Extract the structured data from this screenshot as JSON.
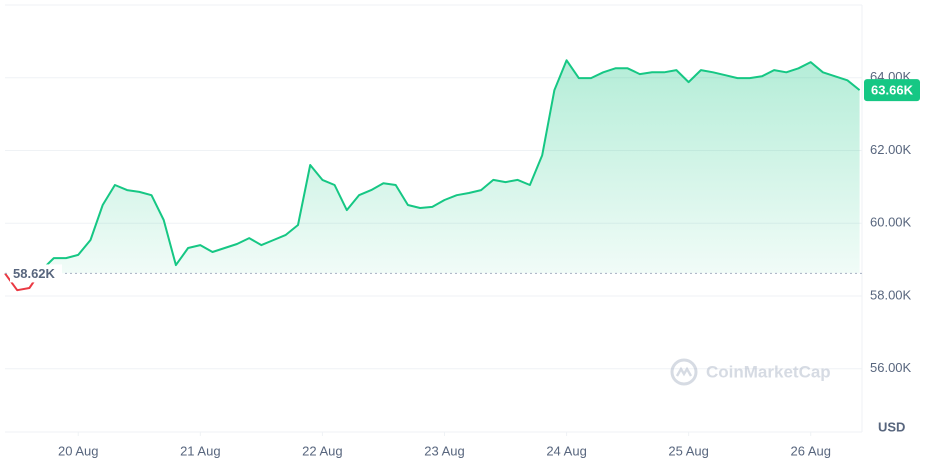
{
  "chart_data": {
    "type": "line",
    "x": [
      19.4,
      19.5,
      19.6,
      19.7,
      19.8,
      19.9,
      20.0,
      20.1,
      20.2,
      20.3,
      20.4,
      20.5,
      20.6,
      20.7,
      20.8,
      20.9,
      21.0,
      21.1,
      21.2,
      21.3,
      21.4,
      21.5,
      21.6,
      21.7,
      21.8,
      21.9,
      22.0,
      22.1,
      22.2,
      22.3,
      22.4,
      22.5,
      22.6,
      22.7,
      22.8,
      22.9,
      23.0,
      23.1,
      23.2,
      23.3,
      23.4,
      23.5,
      23.6,
      23.7,
      23.8,
      23.9,
      24.0,
      24.1,
      24.2,
      24.3,
      24.4,
      24.5,
      24.6,
      24.7,
      24.8,
      24.9,
      25.0,
      25.1,
      25.2,
      25.3,
      25.4,
      25.5,
      25.6,
      25.7,
      25.8,
      25.9,
      26.0,
      26.1,
      26.2,
      26.3,
      26.4
    ],
    "series": [
      {
        "color": "#16c784",
        "below_color": "#ea3943",
        "values": [
          58620,
          58160,
          58220,
          58710,
          59040,
          59040,
          59130,
          59540,
          60500,
          61050,
          60910,
          60860,
          60770,
          60090,
          58850,
          59320,
          59400,
          59210,
          59320,
          59430,
          59590,
          59400,
          59540,
          59680,
          59950,
          61600,
          61190,
          61050,
          60360,
          60770,
          60910,
          61100,
          61050,
          60500,
          60420,
          60450,
          60640,
          60770,
          60830,
          60910,
          61190,
          61130,
          61190,
          61050,
          61870,
          63660,
          64480,
          63990,
          63990,
          64150,
          64260,
          64260,
          64100,
          64150,
          64150,
          64210,
          63880,
          64210,
          64150,
          64070,
          63990,
          63990,
          64040,
          64210,
          64150,
          64260,
          64430,
          64150,
          64040,
          63930,
          63660
        ]
      }
    ],
    "baseline": {
      "value": 58620,
      "label": "58.62K"
    },
    "last_price": {
      "value": 63660,
      "label": "63.66K"
    },
    "xlim": [
      19.4,
      26.42
    ],
    "xticks": [
      {
        "value": 20,
        "label": "20 Aug"
      },
      {
        "value": 21,
        "label": "21 Aug"
      },
      {
        "value": 22,
        "label": "22 Aug"
      },
      {
        "value": 23,
        "label": "23 Aug"
      },
      {
        "value": 24,
        "label": "24 Aug"
      },
      {
        "value": 25,
        "label": "25 Aug"
      },
      {
        "value": 26,
        "label": "26 Aug"
      }
    ],
    "ylim": [
      54260,
      66000
    ],
    "yticks": [
      {
        "value": 56000,
        "label": "56.00K"
      },
      {
        "value": 58000,
        "label": "58.00K"
      },
      {
        "value": 60000,
        "label": "60.00K"
      },
      {
        "value": 62000,
        "label": "62.00K"
      },
      {
        "value": 64000,
        "label": "64.00K"
      }
    ],
    "y_unit": "USD",
    "watermark": "CoinMarketCap",
    "grid": true
  }
}
